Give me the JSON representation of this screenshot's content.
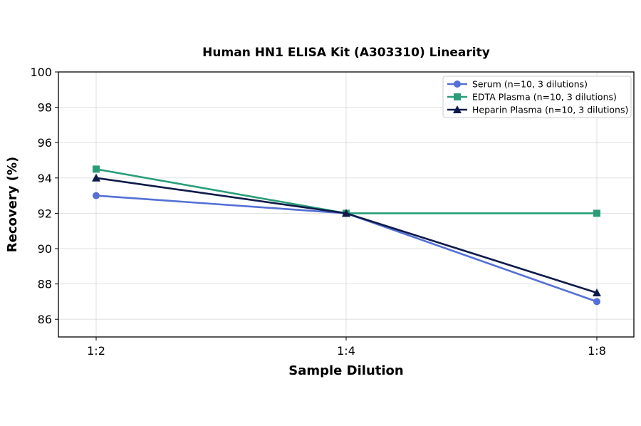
{
  "chart_data": {
    "type": "line",
    "title": "Human HN1 ELISA Kit (A303310) Linearity",
    "xlabel": "Sample Dilution",
    "ylabel": "Recovery (%)",
    "categories": [
      "1:2",
      "1:4",
      "1:8"
    ],
    "ylim": [
      85,
      100
    ],
    "yticks": [
      86,
      88,
      90,
      92,
      94,
      96,
      98,
      100
    ],
    "grid": true,
    "legend_position": "top-right",
    "series": [
      {
        "name": "Serum (n=10, 3 dilutions)",
        "values": [
          93,
          92,
          87
        ],
        "color": "#5470d6",
        "marker": "circle"
      },
      {
        "name": "EDTA Plasma (n=10, 3 dilutions)",
        "values": [
          94.5,
          92,
          92
        ],
        "color": "#2a9d78",
        "marker": "square"
      },
      {
        "name": "Heparin Plasma (n=10, 3 dilutions)",
        "values": [
          94,
          92,
          87.5
        ],
        "color": "#0e1a4a",
        "marker": "triangle"
      }
    ]
  }
}
